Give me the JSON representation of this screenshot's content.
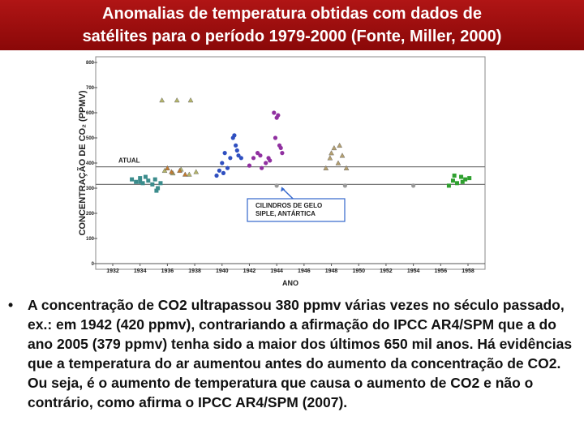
{
  "header": {
    "title_lines": [
      "Anomalias de temperatura obtidas com dados de",
      "satélites para o período 1979-2000 (Fonte, Miller, 2000)"
    ]
  },
  "chart_data": {
    "type": "scatter",
    "xlabel": "ANO",
    "ylabel": "CONCENTRAÇÃO DE CO₂ (PPMV)",
    "xlim": [
      1932,
      1958
    ],
    "xticks": [
      1932,
      1934,
      1936,
      1938,
      1940,
      1942,
      1944,
      1946,
      1948,
      1950,
      1952,
      1954,
      1956,
      1958
    ],
    "ylim": [
      0,
      800
    ],
    "yticks": [
      0,
      100,
      200,
      300,
      400,
      500,
      600,
      700,
      800
    ],
    "reference_lines": [
      {
        "label": "ATUAL",
        "value": 385
      },
      {
        "value": 315
      }
    ],
    "annotation": {
      "lines": [
        "CILINDROS DE GELO",
        "SIPLE, ANTÁRTICA"
      ],
      "x": 1944,
      "y": 315
    },
    "series": [
      {
        "marker": "square",
        "color": "#3b8c8c",
        "x": [
          1933.4,
          1933.7,
          1934.0,
          1934.2,
          1934.4,
          1934.6,
          1934.9,
          1935.1,
          1935.3,
          1935.5,
          1935.2,
          1934.0
        ],
        "values": [
          335,
          325,
          340,
          320,
          345,
          330,
          315,
          335,
          300,
          320,
          290,
          325
        ]
      },
      {
        "marker": "triangle",
        "color": "#b5b56a",
        "x": [
          1935.6,
          1936.7,
          1937.7,
          1935.8,
          1936.4,
          1937.0,
          1937.6,
          1938.1
        ],
        "values": [
          650,
          650,
          650,
          370,
          360,
          375,
          355,
          365
        ]
      },
      {
        "marker": "triangle",
        "color": "#c07a30",
        "x": [
          1936.0,
          1936.3,
          1936.9,
          1937.3
        ],
        "values": [
          380,
          365,
          370,
          355
        ]
      },
      {
        "marker": "circle",
        "color": "#2f4fc0",
        "x": [
          1939.6,
          1939.8,
          1940.0,
          1940.2,
          1940.4,
          1940.6,
          1940.8,
          1941.0,
          1941.2,
          1941.4,
          1940.1,
          1940.9,
          1941.1
        ],
        "values": [
          350,
          370,
          400,
          440,
          380,
          420,
          500,
          470,
          430,
          420,
          360,
          510,
          450
        ]
      },
      {
        "marker": "circle",
        "color": "#9030a0",
        "x": [
          1942.0,
          1942.3,
          1942.6,
          1942.9,
          1943.2,
          1943.5,
          1943.8,
          1944.0,
          1944.2,
          1944.4,
          1943.9,
          1944.1,
          1942.8,
          1943.4,
          1944.3
        ],
        "values": [
          390,
          420,
          440,
          380,
          400,
          410,
          600,
          580,
          470,
          440,
          500,
          590,
          430,
          420,
          460
        ]
      },
      {
        "marker": "circle",
        "color": "#999999",
        "x": [
          1944.0,
          1949.0,
          1954.0
        ],
        "values": [
          310,
          310,
          310
        ]
      },
      {
        "marker": "triangle",
        "color": "#b5a070",
        "x": [
          1947.6,
          1947.9,
          1948.2,
          1948.5,
          1948.8,
          1949.1,
          1948.0,
          1948.6
        ],
        "values": [
          380,
          420,
          460,
          400,
          430,
          380,
          440,
          470
        ]
      },
      {
        "marker": "square",
        "color": "#2fa02f",
        "x": [
          1956.6,
          1956.9,
          1957.2,
          1957.5,
          1957.8,
          1958.1,
          1957.0,
          1957.6
        ],
        "values": [
          310,
          330,
          320,
          345,
          335,
          340,
          350,
          325
        ]
      }
    ]
  },
  "bullet": {
    "text": "A concentração de CO2 ultrapassou 380 ppmv várias vezes no século passado, ex.: em 1942 (420 ppmv), contrariando a afirmação do IPCC AR4/SPM que a do ano 2005 (379 ppmv) tenha sido a maior dos últimos 650 mil anos. Há evidências que a temperatura do ar aumentou antes do aumento da concentração de CO2. Ou seja, é o aumento de temperatura que causa o aumento de CO2 e não o contrário, como afirma o IPCC AR4/SPM (2007)."
  }
}
